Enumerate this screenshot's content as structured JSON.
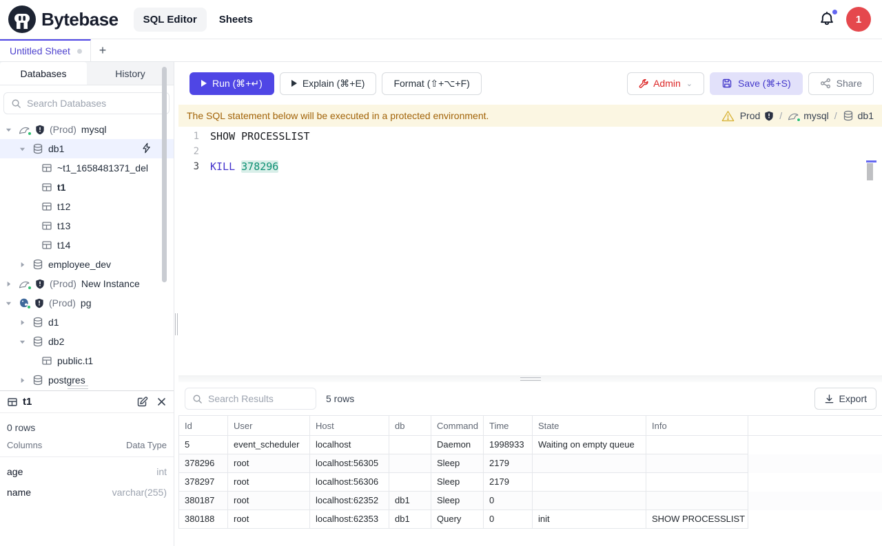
{
  "header": {
    "brand": "Bytebase",
    "nav": [
      {
        "label": "SQL Editor",
        "active": true
      },
      {
        "label": "Sheets",
        "active": false
      }
    ],
    "notification_count_dot": true,
    "avatar": "1"
  },
  "tabs": {
    "active_tab": "Untitled Sheet",
    "new_tab_label": "+"
  },
  "sidebar": {
    "tabs": [
      {
        "label": "Databases",
        "active": true
      },
      {
        "label": "History",
        "active": false
      }
    ],
    "search_placeholder": "Search Databases",
    "tree": [
      {
        "depth": 0,
        "chevron": "down",
        "icon": "mysql",
        "dot": true,
        "shield": true,
        "prefix": "(Prod)",
        "label": "mysql"
      },
      {
        "depth": 1,
        "chevron": "down",
        "icon": "database",
        "label": "db1",
        "selected": true,
        "action": "lightning"
      },
      {
        "depth": 2,
        "icon": "table",
        "label": "~t1_1658481371_del"
      },
      {
        "depth": 2,
        "icon": "table",
        "label": "t1",
        "bold": true
      },
      {
        "depth": 2,
        "icon": "table",
        "label": "t12"
      },
      {
        "depth": 2,
        "icon": "table",
        "label": "t13"
      },
      {
        "depth": 2,
        "icon": "table",
        "label": "t14"
      },
      {
        "depth": 1,
        "chevron": "right",
        "icon": "database",
        "label": "employee_dev"
      },
      {
        "depth": 0,
        "chevron": "right",
        "icon": "mysql",
        "dot": true,
        "shield": true,
        "prefix": "(Prod)",
        "label": "New Instance"
      },
      {
        "depth": 0,
        "chevron": "down",
        "icon": "postgres",
        "dot": true,
        "shield": true,
        "prefix": "(Prod)",
        "label": "pg"
      },
      {
        "depth": 1,
        "chevron": "right",
        "icon": "database",
        "label": "d1"
      },
      {
        "depth": 1,
        "chevron": "down",
        "icon": "database",
        "label": "db2"
      },
      {
        "depth": 2,
        "icon": "table",
        "label": "public.t1"
      },
      {
        "depth": 1,
        "chevron": "right",
        "icon": "database",
        "label": "postgres"
      }
    ]
  },
  "table_panel": {
    "title": "t1",
    "rows_count": "0 rows",
    "columns_header": "Columns",
    "type_header": "Data Type",
    "columns": [
      {
        "name": "age",
        "type": "int"
      },
      {
        "name": "name",
        "type": "varchar(255)"
      }
    ]
  },
  "toolbar": {
    "run": "Run (⌘+↵)",
    "explain": "Explain (⌘+E)",
    "format": "Format (⇧+⌥+F)",
    "admin": "Admin",
    "save": "Save (⌘+S)",
    "share": "Share"
  },
  "warning": {
    "message": "The SQL statement below will be executed in a protected environment.",
    "breadcrumb": [
      {
        "label": "Prod",
        "icon_after": "shield"
      },
      {
        "icon": "mysql",
        "dot": true,
        "label": "mysql"
      },
      {
        "icon": "database",
        "label": "db1"
      }
    ]
  },
  "editor": {
    "lines": [
      {
        "num": "1",
        "active": false,
        "tokens": [
          {
            "t": "SHOW PROCESSLIST",
            "c": "plain"
          }
        ]
      },
      {
        "num": "2",
        "active": false,
        "tokens": []
      },
      {
        "num": "3",
        "active": true,
        "tokens": [
          {
            "t": "KILL",
            "c": "keyword"
          },
          {
            "t": " ",
            "c": "plain"
          },
          {
            "t": "378296",
            "c": "number highlight"
          }
        ]
      }
    ]
  },
  "results": {
    "search_placeholder": "Search Results",
    "row_count": "5 rows",
    "export_label": "Export",
    "table": {
      "headers": [
        "Id",
        "User",
        "Host",
        "db",
        "Command",
        "Time",
        "State",
        "Info"
      ],
      "rows": [
        [
          "5",
          "event_scheduler",
          "localhost",
          "",
          "Daemon",
          "1998933",
          "Waiting on empty queue",
          ""
        ],
        [
          "378296",
          "root",
          "localhost:56305",
          "",
          "Sleep",
          "2179",
          "",
          ""
        ],
        [
          "378297",
          "root",
          "localhost:56306",
          "",
          "Sleep",
          "2179",
          "",
          ""
        ],
        [
          "380187",
          "root",
          "localhost:62352",
          "db1",
          "Sleep",
          "0",
          "",
          ""
        ],
        [
          "380188",
          "root",
          "localhost:62353",
          "db1",
          "Query",
          "0",
          "init",
          "SHOW PROCESSLIST"
        ]
      ]
    }
  }
}
